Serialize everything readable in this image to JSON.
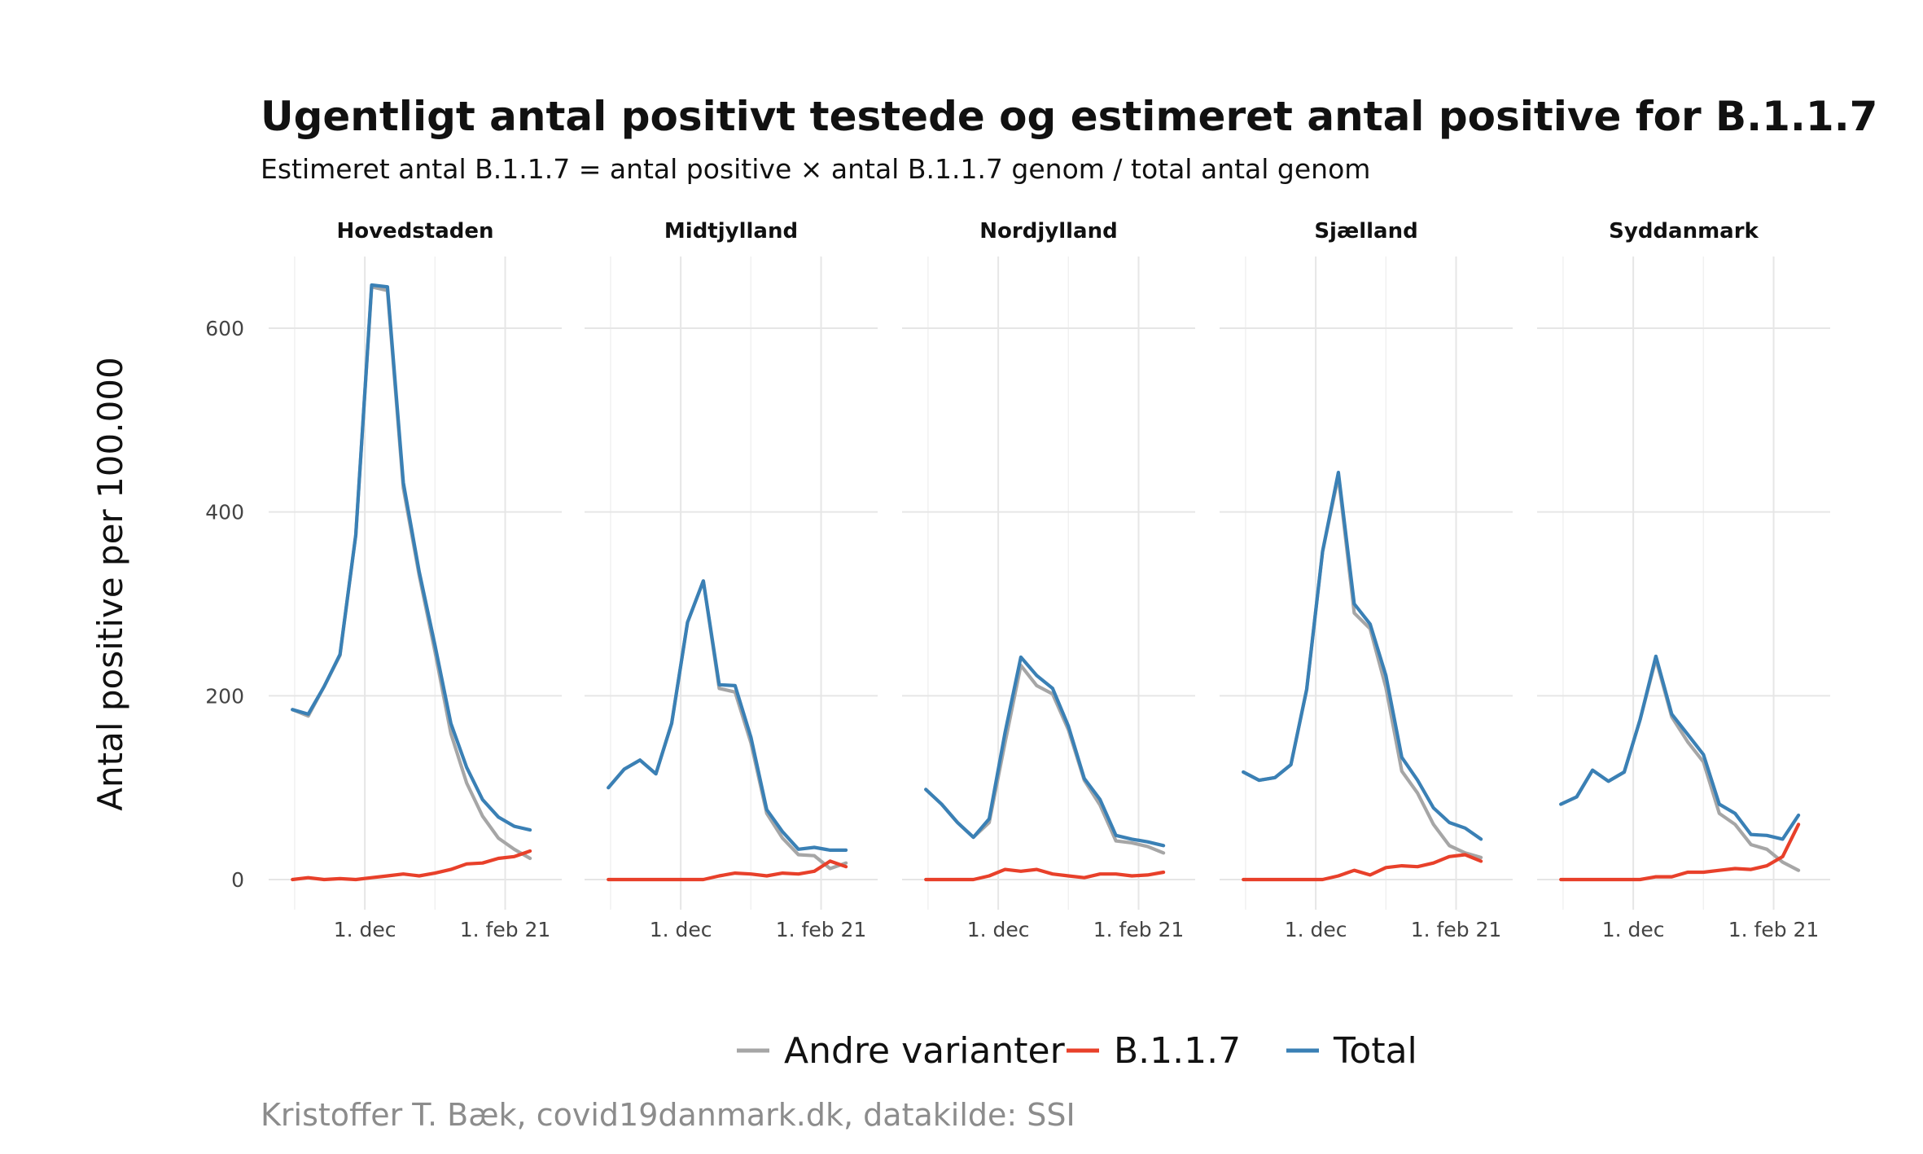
{
  "chart_data": {
    "type": "line",
    "title": "Ugentligt antal positivt testede og estimeret antal positive for B.1.1.7",
    "subtitle": "Estimeret antal B.1.1.7 = antal positive × antal B.1.1.7 genom / total antal genom",
    "ylabel": "Antal positive per 100.000",
    "caption": "Kristoffer T. Bæk, covid19danmark.dk, datakilde: SSI",
    "ylim": [
      -30,
      670
    ],
    "xlim": [
      -1.5,
      17
    ],
    "yticks": [
      0,
      200,
      400,
      600
    ],
    "xticks": [
      {
        "pos": 4.57,
        "label": "1. dec"
      },
      {
        "pos": 13.43,
        "label": "1. feb 21"
      }
    ],
    "xminor": [
      0.14,
      9.0
    ],
    "legend_position": "bottom",
    "grid": true,
    "legend": [
      {
        "key": "andre",
        "label": "Andre varianter",
        "color": "#a6a6a6"
      },
      {
        "key": "b117",
        "label": "B.1.1.7",
        "color": "#e8402a"
      },
      {
        "key": "total",
        "label": "Total",
        "color": "#3a80b5"
      }
    ],
    "facets": [
      {
        "name": "Hovedstaden",
        "total": [
          185,
          180,
          210,
          245,
          375,
          647,
          645,
          432,
          335,
          255,
          170,
          122,
          87,
          68,
          58,
          54
        ],
        "b117": [
          0,
          2,
          0,
          1,
          0,
          2,
          4,
          6,
          4,
          7,
          11,
          17,
          18,
          23,
          25,
          31
        ],
        "andre": [
          185,
          178,
          210,
          244,
          375,
          645,
          641,
          426,
          331,
          248,
          159,
          105,
          69,
          45,
          33,
          23
        ]
      },
      {
        "name": "Midtjylland",
        "total": [
          100,
          120,
          130,
          115,
          170,
          280,
          325,
          212,
          211,
          155,
          76,
          52,
          33,
          35,
          32,
          32
        ],
        "b117": [
          0,
          0,
          0,
          0,
          0,
          0,
          0,
          4,
          7,
          6,
          4,
          7,
          6,
          9,
          20,
          14
        ],
        "andre": [
          100,
          120,
          130,
          115,
          170,
          280,
          325,
          208,
          204,
          149,
          72,
          45,
          27,
          26,
          12,
          18
        ]
      },
      {
        "name": "Nordjylland",
        "total": [
          98,
          82,
          62,
          46,
          66,
          160,
          242,
          222,
          208,
          167,
          110,
          87,
          48,
          44,
          41,
          37
        ],
        "b117": [
          0,
          0,
          0,
          0,
          4,
          11,
          9,
          11,
          6,
          4,
          2,
          6,
          6,
          4,
          5,
          8
        ],
        "andre": [
          98,
          82,
          62,
          46,
          62,
          149,
          233,
          211,
          202,
          163,
          108,
          81,
          42,
          40,
          36,
          29
        ]
      },
      {
        "name": "Sjælland",
        "total": [
          117,
          108,
          111,
          125,
          207,
          357,
          443,
          300,
          278,
          222,
          133,
          108,
          78,
          62,
          56,
          44
        ],
        "b117": [
          0,
          0,
          0,
          0,
          0,
          0,
          4,
          10,
          5,
          13,
          15,
          14,
          18,
          25,
          27,
          20
        ],
        "andre": [
          117,
          108,
          111,
          125,
          207,
          357,
          439,
          290,
          273,
          209,
          118,
          94,
          60,
          37,
          29,
          24
        ]
      },
      {
        "name": "Syddanmark",
        "total": [
          82,
          90,
          119,
          107,
          117,
          174,
          243,
          180,
          158,
          136,
          82,
          72,
          49,
          48,
          44,
          70
        ],
        "b117": [
          0,
          0,
          0,
          0,
          0,
          0,
          3,
          3,
          8,
          8,
          10,
          12,
          11,
          15,
          25,
          60
        ],
        "andre": [
          82,
          90,
          119,
          107,
          117,
          174,
          240,
          177,
          150,
          128,
          72,
          60,
          38,
          33,
          19,
          10
        ]
      }
    ]
  }
}
